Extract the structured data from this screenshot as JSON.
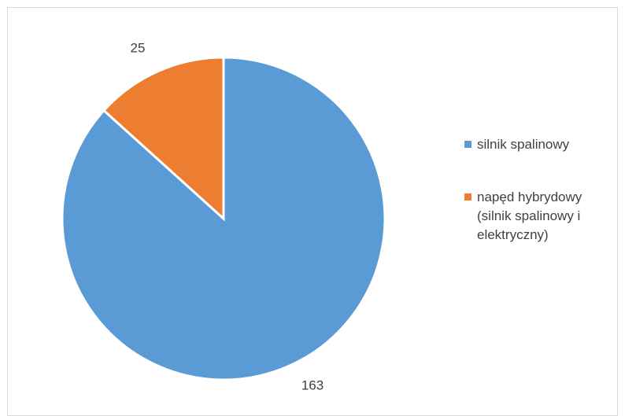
{
  "chart_data": {
    "type": "pie",
    "title": "",
    "slices": [
      {
        "label": "silnik spalinowy",
        "value": 163,
        "color": "#5b9bd5"
      },
      {
        "label": "napęd hybrydowy\n(silnik spalinowy i\nelektryczny)",
        "value": 25,
        "color": "#ed7d31"
      }
    ],
    "legend_position": "right",
    "data_labels": [
      "163",
      "25"
    ]
  }
}
